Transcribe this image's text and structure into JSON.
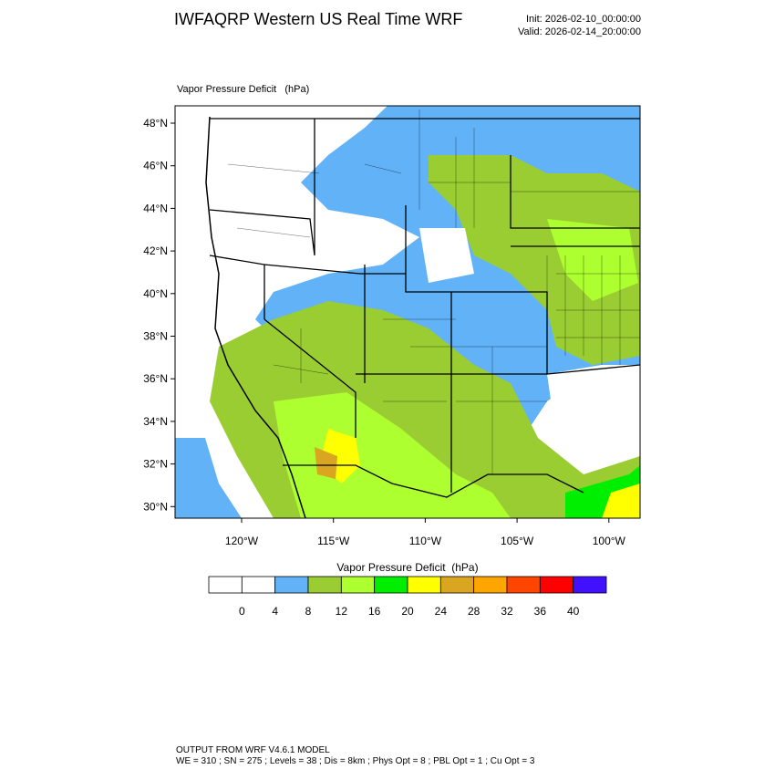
{
  "header": {
    "title": "IWFAQRP Western US Real Time WRF",
    "init": "Init: 2026-02-10_00:00:00",
    "valid": "Valid: 2026-02-14_20:00:00"
  },
  "map": {
    "title": "Vapor Pressure Deficit   (hPa)",
    "lat_labels": [
      "48°N",
      "46°N",
      "44°N",
      "42°N",
      "40°N",
      "38°N",
      "36°N",
      "34°N",
      "32°N",
      "30°N"
    ],
    "lon_labels": [
      "120°W",
      "115°W",
      "110°W",
      "105°W",
      "100°W"
    ]
  },
  "colorbar": {
    "title": "Vapor Pressure Deficit  (hPa)",
    "colors": [
      "#ffffff",
      "#ffffff",
      "#62b2f8",
      "#9acd32",
      "#adff2f",
      "#00ee00",
      "#ffff00",
      "#daa520",
      "#ffa500",
      "#ff4500",
      "#ff0000",
      "#4010ff"
    ],
    "labels": [
      0,
      4,
      8,
      12,
      16,
      20,
      24,
      28,
      32,
      36,
      40
    ]
  },
  "footer": {
    "line1": "OUTPUT FROM WRF V4.6.1 MODEL",
    "line2": "WE = 310 ; SN = 275 ; Levels = 38 ; Dis = 8km ; Phys Opt = 8 ; PBL Opt = 1 ; Cu Opt = 3"
  }
}
